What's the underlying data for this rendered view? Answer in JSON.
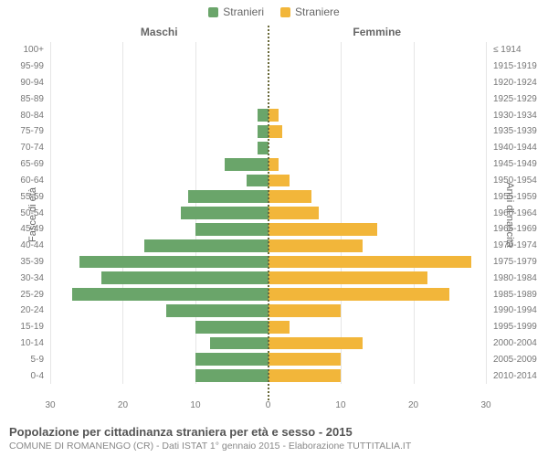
{
  "legend": {
    "male": {
      "label": "Stranieri",
      "color": "#6aa56a"
    },
    "female": {
      "label": "Straniere",
      "color": "#f2b63a"
    }
  },
  "header": {
    "male": "Maschi",
    "female": "Femmine"
  },
  "axis": {
    "left_title": "Fasce di età",
    "right_title": "Anni di nascita",
    "x_ticks_left": [
      30,
      20,
      10,
      0
    ],
    "x_ticks_right": [
      0,
      10,
      20,
      30
    ],
    "x_max": 30
  },
  "style": {
    "grid_color": "#e6e6e6",
    "center_line_color": "#6a6a3a",
    "background": "#ffffff",
    "label_color": "#777",
    "tick_fontsize": 10,
    "label_fontsize": 11,
    "header_fontsize": 12
  },
  "rows": [
    {
      "age": "100+",
      "birth": "≤ 1914",
      "m": 0,
      "f": 0
    },
    {
      "age": "95-99",
      "birth": "1915-1919",
      "m": 0,
      "f": 0
    },
    {
      "age": "90-94",
      "birth": "1920-1924",
      "m": 0,
      "f": 0
    },
    {
      "age": "85-89",
      "birth": "1925-1929",
      "m": 0,
      "f": 0
    },
    {
      "age": "80-84",
      "birth": "1930-1934",
      "m": 1.5,
      "f": 1.5
    },
    {
      "age": "75-79",
      "birth": "1935-1939",
      "m": 1.5,
      "f": 2
    },
    {
      "age": "70-74",
      "birth": "1940-1944",
      "m": 1.5,
      "f": 0
    },
    {
      "age": "65-69",
      "birth": "1945-1949",
      "m": 6,
      "f": 1.5
    },
    {
      "age": "60-64",
      "birth": "1950-1954",
      "m": 3,
      "f": 3
    },
    {
      "age": "55-59",
      "birth": "1955-1959",
      "m": 11,
      "f": 6
    },
    {
      "age": "50-54",
      "birth": "1960-1964",
      "m": 12,
      "f": 7
    },
    {
      "age": "45-49",
      "birth": "1965-1969",
      "m": 10,
      "f": 15
    },
    {
      "age": "40-44",
      "birth": "1970-1974",
      "m": 17,
      "f": 13
    },
    {
      "age": "35-39",
      "birth": "1975-1979",
      "m": 26,
      "f": 28
    },
    {
      "age": "30-34",
      "birth": "1980-1984",
      "m": 23,
      "f": 22
    },
    {
      "age": "25-29",
      "birth": "1985-1989",
      "m": 27,
      "f": 25
    },
    {
      "age": "20-24",
      "birth": "1990-1994",
      "m": 14,
      "f": 10
    },
    {
      "age": "15-19",
      "birth": "1995-1999",
      "m": 10,
      "f": 3
    },
    {
      "age": "10-14",
      "birth": "2000-2004",
      "m": 8,
      "f": 13
    },
    {
      "age": "5-9",
      "birth": "2005-2009",
      "m": 10,
      "f": 10
    },
    {
      "age": "0-4",
      "birth": "2010-2014",
      "m": 10,
      "f": 10
    }
  ],
  "footer": {
    "title": "Popolazione per cittadinanza straniera per età e sesso - 2015",
    "subtitle": "COMUNE DI ROMANENGO (CR) - Dati ISTAT 1° gennaio 2015 - Elaborazione TUTTITALIA.IT"
  }
}
